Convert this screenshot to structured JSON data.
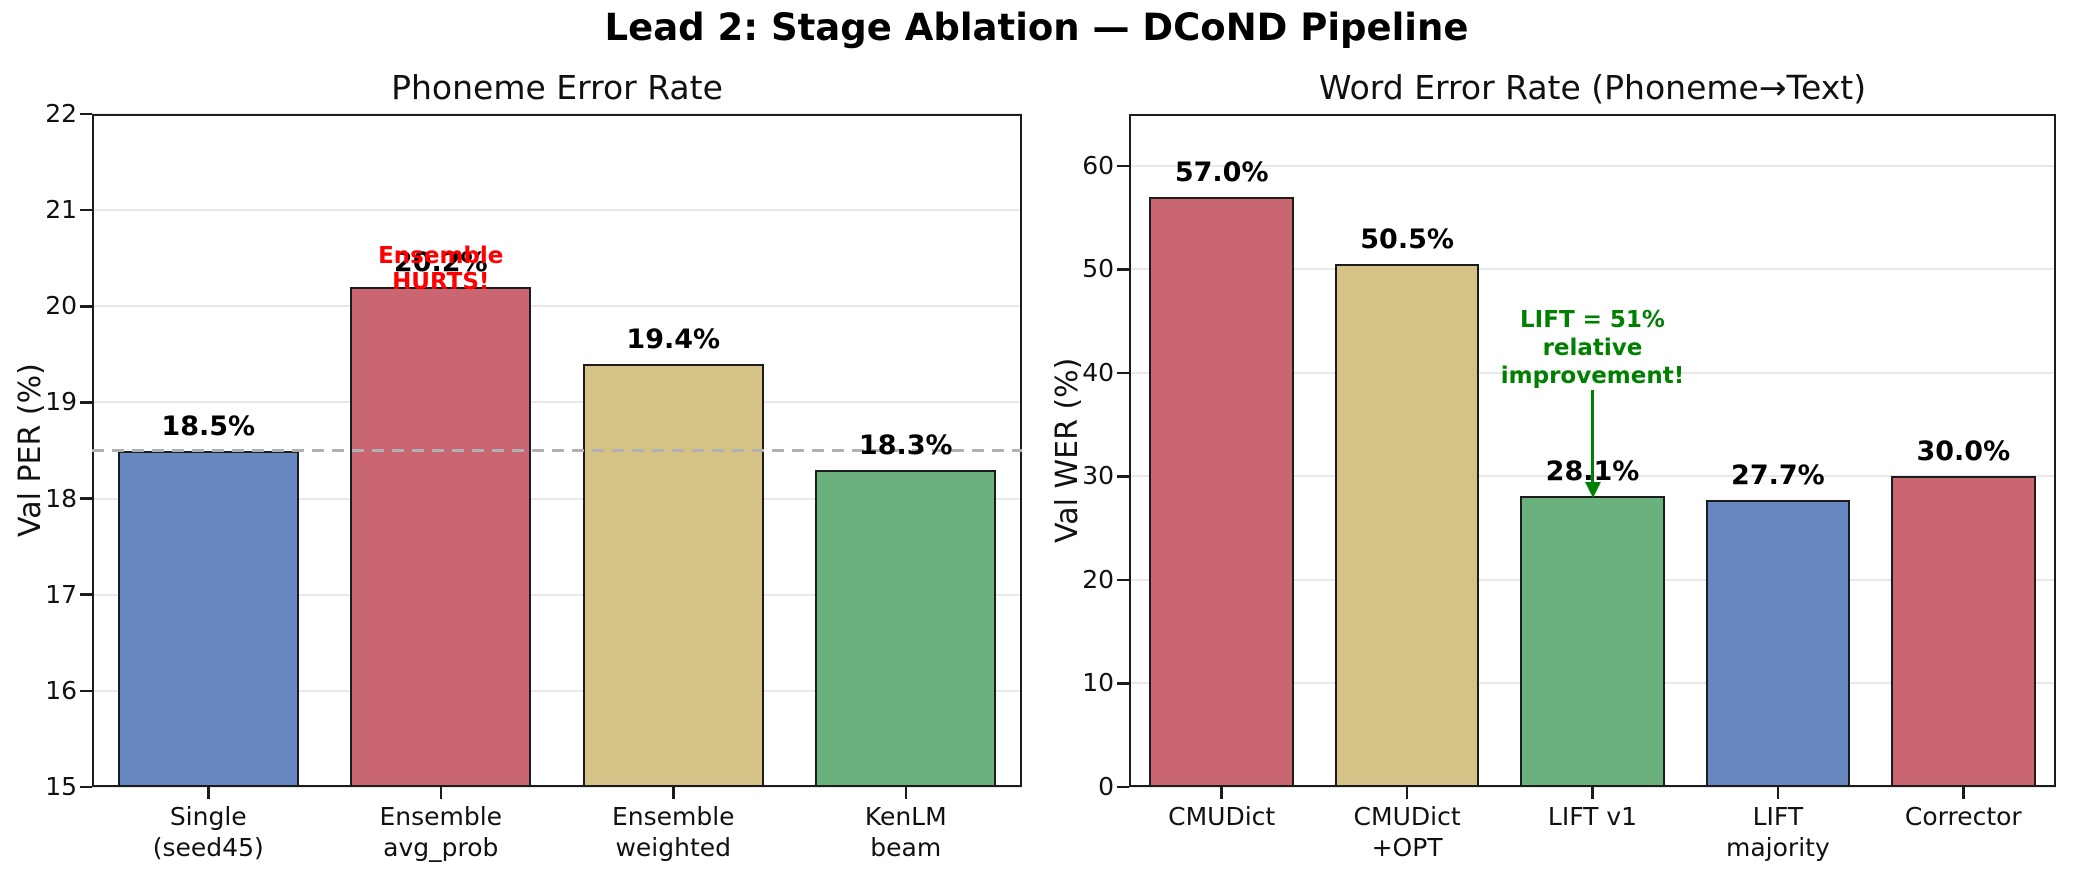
{
  "figure": {
    "title": "Lead 2: Stage Ablation — DCoND Pipeline"
  },
  "chart_data": [
    {
      "type": "bar",
      "title": "Phoneme Error Rate",
      "xlabel": "",
      "ylabel": "Val PER (%)",
      "categories": [
        "Single\n(seed45)",
        "Ensemble\navg_prob",
        "Ensemble\nweighted",
        "KenLM\nbeam"
      ],
      "values": [
        18.5,
        20.2,
        19.4,
        18.3
      ],
      "value_labels": [
        "18.5%",
        "20.2%",
        "19.4%",
        "18.3%"
      ],
      "bar_colors": [
        "#6787c0",
        "#c96672",
        "#d5c287",
        "#6bb17e"
      ],
      "bar_edge_color": "#1c1c1c",
      "ylim": [
        15,
        22
      ],
      "yticks": [
        15,
        16,
        17,
        18,
        19,
        20,
        21,
        22
      ],
      "grid": true,
      "legend": null,
      "ref_line": {
        "y": 18.5,
        "style": "dashed",
        "color": "#b0b0b0"
      },
      "annotations": [
        {
          "text": "Ensemble\nHURTS!",
          "color": "#ff0000",
          "anchor_category": "Ensemble\navg_prob",
          "anchor_index": 1,
          "arrow": false
        }
      ]
    },
    {
      "type": "bar",
      "title": "Word Error Rate (Phoneme→Text)",
      "xlabel": "",
      "ylabel": "Val WER (%)",
      "categories": [
        "CMUDict",
        "CMUDict\n+OPT",
        "LIFT v1",
        "LIFT\nmajority",
        "Corrector"
      ],
      "values": [
        57.0,
        50.5,
        28.1,
        27.7,
        30.0
      ],
      "value_labels": [
        "57.0%",
        "50.5%",
        "28.1%",
        "27.7%",
        "30.0%"
      ],
      "bar_colors": [
        "#c96672",
        "#d5c287",
        "#6bb17e",
        "#6787c0",
        "#c96672"
      ],
      "bar_edge_color": "#1c1c1c",
      "ylim": [
        0,
        65
      ],
      "yticks": [
        0,
        10,
        20,
        30,
        40,
        50,
        60
      ],
      "grid": true,
      "legend": null,
      "ref_line": null,
      "annotations": [
        {
          "text": "LIFT = 51%\nrelative\nimprovement!",
          "color": "#008000",
          "anchor_category": "LIFT v1",
          "anchor_index": 2,
          "arrow": true
        }
      ]
    }
  ]
}
